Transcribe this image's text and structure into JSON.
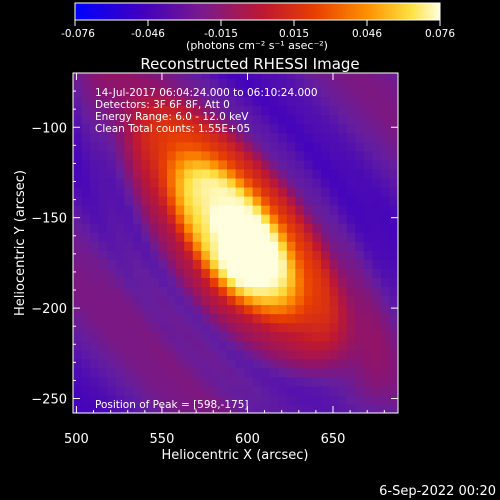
{
  "chart_data": {
    "type": "heatmap",
    "title": "Reconstructed RHESSI Image",
    "xlabel": "Heliocentric X (arcsec)",
    "ylabel": "Heliocentric Y (arcsec)",
    "xlim": [
      498,
      688
    ],
    "ylim": [
      -258,
      -70
    ],
    "xticks": [
      500,
      550,
      600,
      650
    ],
    "yticks": [
      -100,
      -150,
      -200,
      -250
    ],
    "colorbar": {
      "ticks": [
        "-0.076",
        "-0.046",
        "-0.015",
        "0.015",
        "0.046",
        "0.076"
      ],
      "min": -0.076,
      "max": 0.076,
      "label": "(photons cm⁻² s⁻¹ asec⁻²)"
    },
    "annotations": [
      "14-Jul-2017 06:04:24.000 to 06:10:24.000",
      "Detectors: 3F 6F 8F, Att 0",
      "Energy Range: 6.0 - 12.0 keV",
      "Clean     Total counts: 1.55E+05"
    ],
    "peak_label": "Position of Peak = [598,-175]",
    "peak": {
      "x": 598,
      "y": -175,
      "value": 0.076
    },
    "source": {
      "center_x": 592,
      "center_y": -160,
      "angle_deg": -52,
      "major_sigma": 48,
      "minor_sigma": 22
    },
    "colors": [
      "#0000ff",
      "#5a00a8",
      "#7a1a8c",
      "#b01838",
      "#e03000",
      "#ff8000",
      "#ffd020",
      "#ffffa0",
      "#ffffff"
    ]
  },
  "footer": {
    "date": "6-Sep-2022 00:20"
  }
}
